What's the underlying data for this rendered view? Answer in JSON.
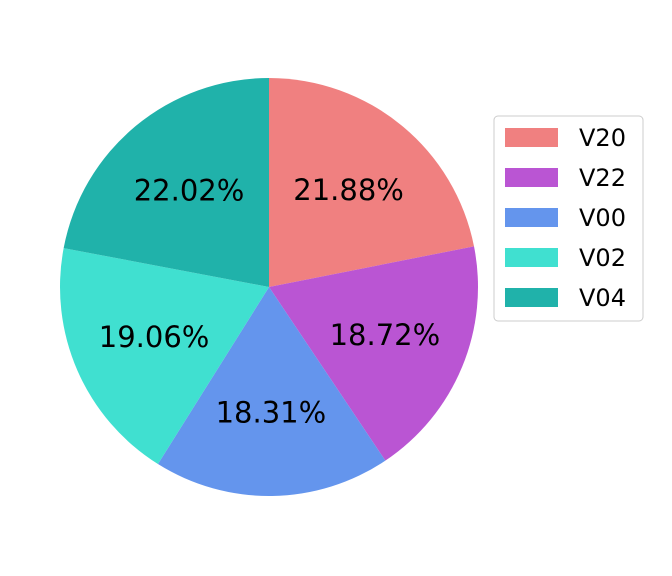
{
  "chart_data": {
    "type": "pie",
    "title": "",
    "slices": [
      {
        "label": "V20",
        "value": 21.88,
        "display": "21.88%",
        "color": "#F08080"
      },
      {
        "label": "V22",
        "value": 18.72,
        "display": "18.72%",
        "color": "#BA55D3"
      },
      {
        "label": "V00",
        "value": 18.31,
        "display": "18.31%",
        "color": "#6495ED"
      },
      {
        "label": "V02",
        "value": 19.06,
        "display": "19.06%",
        "color": "#40E0D0"
      },
      {
        "label": "V04",
        "value": 22.02,
        "display": "22.02%",
        "color": "#20B2AA"
      }
    ],
    "start_angle": "top",
    "direction": "clockwise",
    "legend": {
      "placement": "right"
    }
  }
}
